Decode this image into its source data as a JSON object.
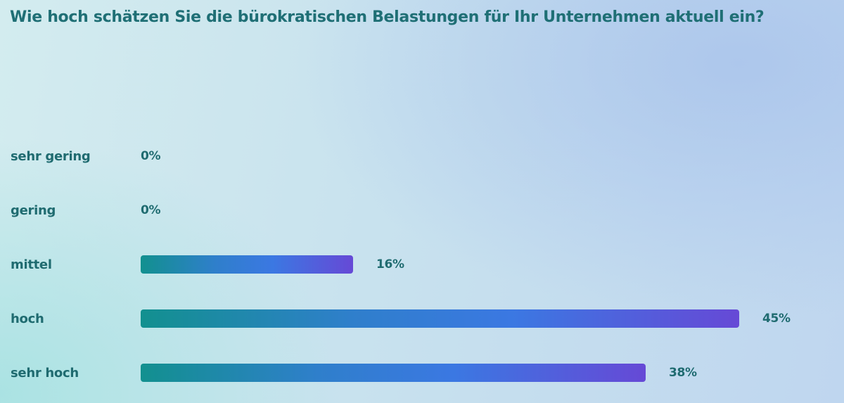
{
  "chart_data": {
    "type": "bar",
    "orientation": "horizontal",
    "title": "Wie hoch schätzen Sie die bürokratischen Belastungen für Ihr Unternehmen aktuell ein?",
    "categories": [
      "sehr gering",
      "gering",
      "mittel",
      "hoch",
      "sehr hoch"
    ],
    "values": [
      0,
      0,
      16,
      45,
      38
    ],
    "value_labels": [
      "0%",
      "0%",
      "16%",
      "45%",
      "38%"
    ],
    "unit": "%",
    "grid": false,
    "legend": "none"
  },
  "colors": {
    "text": "#1f6b70",
    "bar_gradient": [
      "#12908f",
      "#3b78e2",
      "#6649d6"
    ]
  }
}
